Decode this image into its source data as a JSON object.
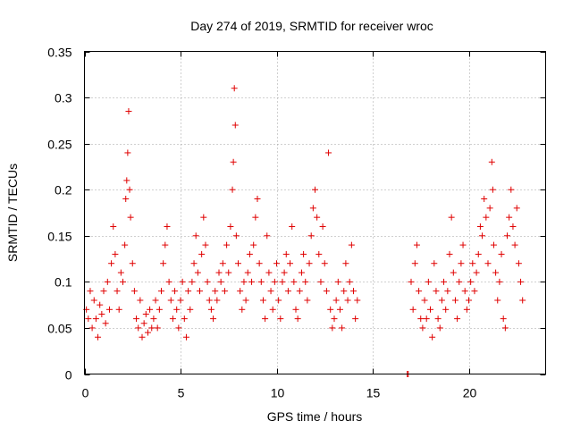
{
  "chart_data": {
    "type": "scatter",
    "title": "Day 274 of 2019, SRMTID for receiver wroc",
    "xlabel": "GPS time / hours",
    "ylabel": "SRMTID / TECUs",
    "xlim": [
      0,
      24
    ],
    "ylim": [
      0,
      0.35
    ],
    "xticks": [
      0,
      5,
      10,
      15,
      20
    ],
    "xtick_labels": [
      "0",
      "5",
      "10",
      "15",
      "20"
    ],
    "yticks": [
      0,
      0.05,
      0.1,
      0.15,
      0.2,
      0.25,
      0.3,
      0.35
    ],
    "ytick_labels": [
      "0",
      "0.05",
      "0.1",
      "0.15",
      "0.2",
      "0.25",
      "0.3",
      "0.35"
    ],
    "grid": true,
    "marker": "+",
    "marker_color": "#e00000",
    "series": [
      {
        "name": "SRMTID",
        "points": [
          [
            0.1,
            0.07
          ],
          [
            0.2,
            0.06
          ],
          [
            0.3,
            0.09
          ],
          [
            0.4,
            0.05
          ],
          [
            0.5,
            0.08
          ],
          [
            0.6,
            0.06
          ],
          [
            0.7,
            0.04
          ],
          [
            0.8,
            0.075
          ],
          [
            0.9,
            0.065
          ],
          [
            1.0,
            0.09
          ],
          [
            1.1,
            0.055
          ],
          [
            1.2,
            0.1
          ],
          [
            1.3,
            0.07
          ],
          [
            1.4,
            0.12
          ],
          [
            1.5,
            0.16
          ],
          [
            1.6,
            0.13
          ],
          [
            1.7,
            0.09
          ],
          [
            1.8,
            0.07
          ],
          [
            1.9,
            0.11
          ],
          [
            2.0,
            0.1
          ],
          [
            2.1,
            0.14
          ],
          [
            2.15,
            0.19
          ],
          [
            2.2,
            0.21
          ],
          [
            2.25,
            0.24
          ],
          [
            2.3,
            0.285
          ],
          [
            2.35,
            0.2
          ],
          [
            2.4,
            0.17
          ],
          [
            2.5,
            0.12
          ],
          [
            2.6,
            0.09
          ],
          [
            2.7,
            0.06
          ],
          [
            2.8,
            0.05
          ],
          [
            2.9,
            0.08
          ],
          [
            3.0,
            0.04
          ],
          [
            3.1,
            0.055
          ],
          [
            3.2,
            0.065
          ],
          [
            3.3,
            0.045
          ],
          [
            3.4,
            0.07
          ],
          [
            3.5,
            0.05
          ],
          [
            3.6,
            0.06
          ],
          [
            3.7,
            0.08
          ],
          [
            3.8,
            0.05
          ],
          [
            3.9,
            0.07
          ],
          [
            4.0,
            0.09
          ],
          [
            4.1,
            0.12
          ],
          [
            4.2,
            0.14
          ],
          [
            4.3,
            0.16
          ],
          [
            4.4,
            0.1
          ],
          [
            4.5,
            0.08
          ],
          [
            4.6,
            0.06
          ],
          [
            4.7,
            0.09
          ],
          [
            4.8,
            0.07
          ],
          [
            4.9,
            0.05
          ],
          [
            5.0,
            0.08
          ],
          [
            5.1,
            0.1
          ],
          [
            5.2,
            0.06
          ],
          [
            5.3,
            0.04
          ],
          [
            5.4,
            0.09
          ],
          [
            5.5,
            0.07
          ],
          [
            5.6,
            0.1
          ],
          [
            5.7,
            0.12
          ],
          [
            5.8,
            0.15
          ],
          [
            5.9,
            0.11
          ],
          [
            6.0,
            0.09
          ],
          [
            6.1,
            0.13
          ],
          [
            6.2,
            0.17
          ],
          [
            6.3,
            0.14
          ],
          [
            6.4,
            0.1
          ],
          [
            6.5,
            0.08
          ],
          [
            6.6,
            0.07
          ],
          [
            6.7,
            0.06
          ],
          [
            6.8,
            0.09
          ],
          [
            6.9,
            0.08
          ],
          [
            7.0,
            0.11
          ],
          [
            7.1,
            0.1
          ],
          [
            7.2,
            0.12
          ],
          [
            7.3,
            0.09
          ],
          [
            7.4,
            0.14
          ],
          [
            7.5,
            0.11
          ],
          [
            7.6,
            0.16
          ],
          [
            7.7,
            0.2
          ],
          [
            7.75,
            0.23
          ],
          [
            7.8,
            0.31
          ],
          [
            7.85,
            0.27
          ],
          [
            7.9,
            0.15
          ],
          [
            8.0,
            0.12
          ],
          [
            8.1,
            0.09
          ],
          [
            8.2,
            0.07
          ],
          [
            8.3,
            0.1
          ],
          [
            8.4,
            0.08
          ],
          [
            8.5,
            0.11
          ],
          [
            8.6,
            0.13
          ],
          [
            8.7,
            0.1
          ],
          [
            8.8,
            0.14
          ],
          [
            8.9,
            0.17
          ],
          [
            9.0,
            0.19
          ],
          [
            9.1,
            0.12
          ],
          [
            9.2,
            0.1
          ],
          [
            9.3,
            0.08
          ],
          [
            9.4,
            0.06
          ],
          [
            9.5,
            0.15
          ],
          [
            9.6,
            0.11
          ],
          [
            9.7,
            0.09
          ],
          [
            9.8,
            0.07
          ],
          [
            9.9,
            0.1
          ],
          [
            10.0,
            0.12
          ],
          [
            10.1,
            0.08
          ],
          [
            10.2,
            0.06
          ],
          [
            10.3,
            0.1
          ],
          [
            10.4,
            0.11
          ],
          [
            10.5,
            0.13
          ],
          [
            10.6,
            0.09
          ],
          [
            10.7,
            0.12
          ],
          [
            10.8,
            0.16
          ],
          [
            10.9,
            0.1
          ],
          [
            11.0,
            0.07
          ],
          [
            11.1,
            0.06
          ],
          [
            11.2,
            0.09
          ],
          [
            11.3,
            0.11
          ],
          [
            11.4,
            0.13
          ],
          [
            11.5,
            0.1
          ],
          [
            11.6,
            0.08
          ],
          [
            11.7,
            0.12
          ],
          [
            11.8,
            0.15
          ],
          [
            11.9,
            0.18
          ],
          [
            12.0,
            0.2
          ],
          [
            12.1,
            0.17
          ],
          [
            12.2,
            0.13
          ],
          [
            12.3,
            0.1
          ],
          [
            12.4,
            0.16
          ],
          [
            12.5,
            0.12
          ],
          [
            12.6,
            0.09
          ],
          [
            12.7,
            0.24
          ],
          [
            12.8,
            0.07
          ],
          [
            12.9,
            0.05
          ],
          [
            13.0,
            0.06
          ],
          [
            13.1,
            0.08
          ],
          [
            13.2,
            0.1
          ],
          [
            13.3,
            0.07
          ],
          [
            13.4,
            0.05
          ],
          [
            13.5,
            0.09
          ],
          [
            13.6,
            0.12
          ],
          [
            13.7,
            0.08
          ],
          [
            13.8,
            0.1
          ],
          [
            13.9,
            0.14
          ],
          [
            14.0,
            0.09
          ],
          [
            14.1,
            0.06
          ],
          [
            14.2,
            0.08
          ],
          [
            16.8,
            0.0
          ],
          [
            16.85,
            0.0
          ],
          [
            17.0,
            0.1
          ],
          [
            17.1,
            0.07
          ],
          [
            17.2,
            0.12
          ],
          [
            17.3,
            0.14
          ],
          [
            17.4,
            0.09
          ],
          [
            17.5,
            0.06
          ],
          [
            17.6,
            0.05
          ],
          [
            17.7,
            0.08
          ],
          [
            17.8,
            0.06
          ],
          [
            17.9,
            0.1
          ],
          [
            18.0,
            0.07
          ],
          [
            18.1,
            0.04
          ],
          [
            18.2,
            0.12
          ],
          [
            18.3,
            0.09
          ],
          [
            18.4,
            0.06
          ],
          [
            18.5,
            0.05
          ],
          [
            18.6,
            0.08
          ],
          [
            18.7,
            0.1
          ],
          [
            18.8,
            0.07
          ],
          [
            18.9,
            0.09
          ],
          [
            19.0,
            0.13
          ],
          [
            19.1,
            0.17
          ],
          [
            19.2,
            0.11
          ],
          [
            19.3,
            0.08
          ],
          [
            19.4,
            0.06
          ],
          [
            19.5,
            0.1
          ],
          [
            19.6,
            0.12
          ],
          [
            19.7,
            0.14
          ],
          [
            19.8,
            0.09
          ],
          [
            19.9,
            0.07
          ],
          [
            20.0,
            0.08
          ],
          [
            20.1,
            0.1
          ],
          [
            20.2,
            0.12
          ],
          [
            20.3,
            0.09
          ],
          [
            20.4,
            0.11
          ],
          [
            20.5,
            0.13
          ],
          [
            20.6,
            0.16
          ],
          [
            20.7,
            0.15
          ],
          [
            20.8,
            0.19
          ],
          [
            20.9,
            0.17
          ],
          [
            21.0,
            0.12
          ],
          [
            21.1,
            0.18
          ],
          [
            21.2,
            0.23
          ],
          [
            21.25,
            0.2
          ],
          [
            21.3,
            0.14
          ],
          [
            21.4,
            0.11
          ],
          [
            21.5,
            0.08
          ],
          [
            21.6,
            0.1
          ],
          [
            21.7,
            0.13
          ],
          [
            21.8,
            0.06
          ],
          [
            21.9,
            0.05
          ],
          [
            22.0,
            0.15
          ],
          [
            22.1,
            0.17
          ],
          [
            22.2,
            0.2
          ],
          [
            22.3,
            0.16
          ],
          [
            22.4,
            0.14
          ],
          [
            22.5,
            0.18
          ],
          [
            22.6,
            0.12
          ],
          [
            22.7,
            0.1
          ],
          [
            22.8,
            0.08
          ]
        ]
      }
    ]
  }
}
